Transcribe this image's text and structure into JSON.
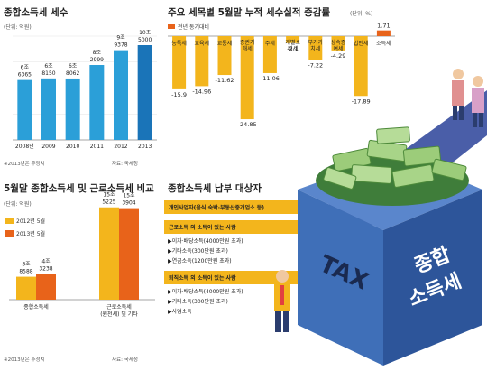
{
  "panel1": {
    "title": "종합소득세 세수",
    "unit": "(단위: 억원)",
    "note": "※2013년은 추정치",
    "source": "자료: 국세청"
  },
  "panel2": {
    "title": "주요 세목별 5월말 누적 세수실적 증감률",
    "unit": "(단위: %)",
    "legend": "전년 동기대비"
  },
  "panel3": {
    "title": "5월말 종합소득세 및 근로소득세 비교",
    "unit": "(단위: 억원)",
    "note": "※2013년은 추정치",
    "source": "자료: 국세청"
  },
  "panel4": {
    "title": "종합소득세 납부 대상자",
    "groups": [
      {
        "header": "개인사업자(음식·숙박·부동산중개업소 등)",
        "items": []
      },
      {
        "header": "근로소득 외 소득이 있는 사람",
        "items": [
          "▶이자·배당소득(4000만원 초과)",
          "▶기타소득(300만원 초과)",
          "▶연금소득(1200만원 초과)"
        ]
      },
      {
        "header": "퇴직소득 외 소득이 있는 사람",
        "items": [
          "▶이자·배당소득(4000만원 초과)",
          "▶기타소득(300만원 초과)",
          "▶사업소득"
        ]
      }
    ]
  },
  "illustration": {
    "box_label": "TAX",
    "side_label_1": "종합",
    "side_label_2": "소득세"
  },
  "colors": {
    "bar_light": "#f3b51c",
    "bar_dark": "#e8631a",
    "blue_bar": "#2b9fd8",
    "blue_bar_latest": "#1a74b8",
    "negative_bar": "#f3b51c",
    "positive_bar": "#e8631a",
    "box_blue": "#3f6fb8"
  },
  "chart_data": [
    {
      "type": "bar",
      "title": "종합소득세 세수",
      "categories": [
        "2008년",
        "2009",
        "2010",
        "2011",
        "2012",
        "2013"
      ],
      "values": [
        66365,
        68150,
        68062,
        82999,
        99378,
        105000
      ],
      "labels": [
        [
          "6조",
          "6365"
        ],
        [
          "6조",
          "8150"
        ],
        [
          "6조",
          "8062"
        ],
        [
          "8조",
          "2999"
        ],
        [
          "9조",
          "9378"
        ],
        [
          "10조",
          "5000"
        ]
      ],
      "ylim": [
        0,
        115000
      ]
    },
    {
      "type": "bar",
      "title": "주요 세목별 5월말 누적 세수실적 증감률",
      "categories": [
        "농특세",
        "교육세",
        "교통세",
        "증권거래세",
        "주세",
        "개별소비세",
        "부가가치세",
        "상속증여세",
        "법인세",
        "소득세"
      ],
      "values": [
        -15.9,
        -14.96,
        -11.62,
        -24.85,
        -11.06,
        -2.1,
        -7.22,
        -4.29,
        -17.89,
        1.71
      ],
      "ylim": [
        -27,
        3
      ]
    },
    {
      "type": "bar",
      "title": "5월말 종합소득세 및 근로소득세 비교",
      "categories": [
        "종합소득세",
        "근로소득세"
      ],
      "category_sublabels": [
        "",
        "(원천세) 및 기타"
      ],
      "series": [
        {
          "name": "2012년 5월",
          "values": [
            38588,
            155225
          ],
          "labels": [
            [
              "3조",
              "8588"
            ],
            [
              "15조",
              "5225"
            ]
          ]
        },
        {
          "name": "2013년 5월",
          "values": [
            43238,
            153904
          ],
          "labels": [
            [
              "4조",
              "3238"
            ],
            [
              "15조",
              "3904"
            ]
          ]
        }
      ],
      "ylim": [
        0,
        170000
      ]
    }
  ]
}
